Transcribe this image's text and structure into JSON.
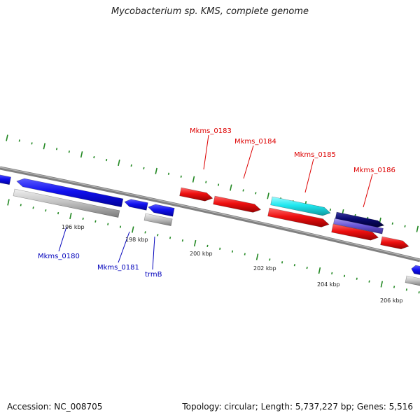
{
  "title": "Mycobacterium sp. KMS, complete genome",
  "footer": {
    "accession": "Accession: NC_008705",
    "summary": "Topology: circular; Length: 5,737,227 bp; Genes: 5,516"
  },
  "colors": {
    "forward_label": "#dd0000",
    "reverse_label": "#0000bb",
    "backbone": "#808080",
    "tick": "#228822",
    "gene_blue": "#1010ee",
    "gene_red": "#ee1010",
    "gene_cyan": "#20e8f0",
    "gene_navy": "#0a0a6e",
    "gene_purple": "#6a58d8",
    "gene_gray": "#c4c4c4"
  },
  "scale_labels": [
    "196 kbp",
    "198 kbp",
    "200 kbp",
    "202 kbp",
    "204 kbp",
    "206 kbp"
  ],
  "gene_labels": {
    "forward": [
      "Mkms_0183",
      "Mkms_0184",
      "Mkms_0185",
      "Mkms_0186"
    ],
    "reverse": [
      "Mkms_0180",
      "Mkms_0181",
      "trmB"
    ]
  }
}
